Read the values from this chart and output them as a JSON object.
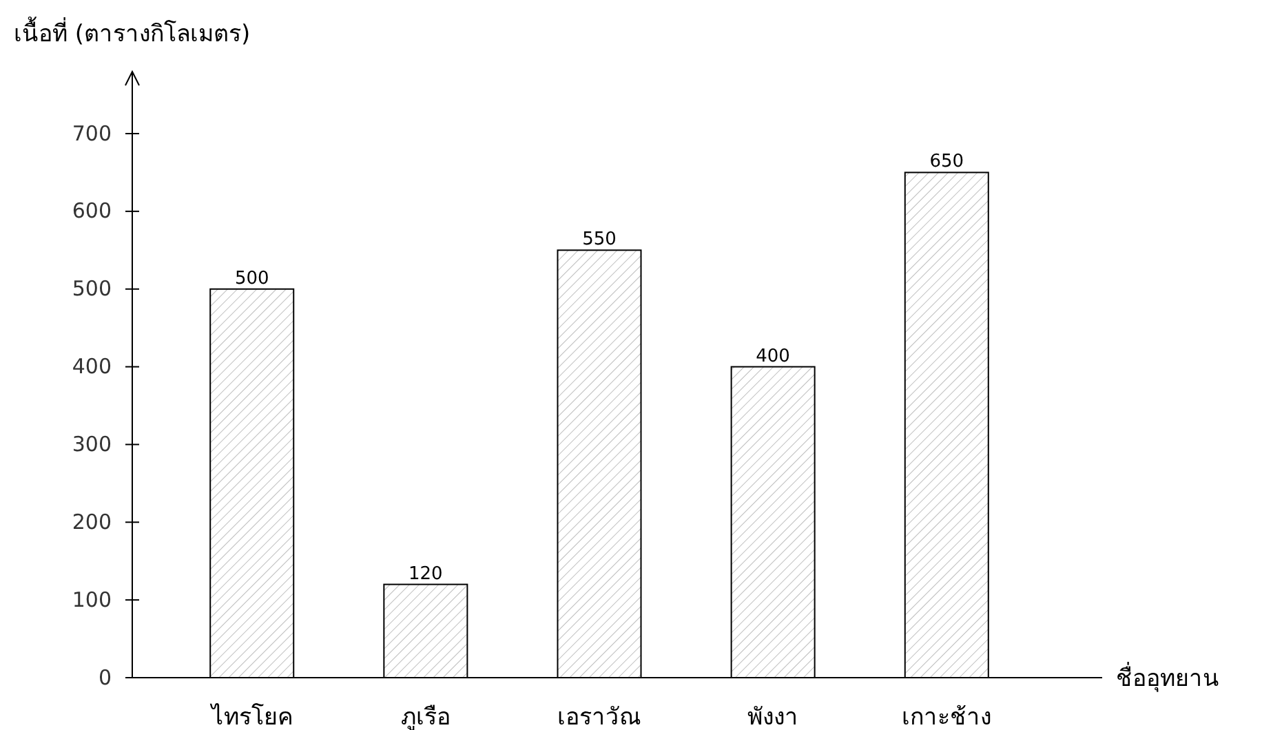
{
  "chart_data": {
    "type": "bar",
    "ylabel": "เนื้อที่ (ตารางกิโลเมตร)",
    "xlabel": "ชื่ออุทยาน",
    "categories": [
      "ไทรโยค",
      "ภูเรือ",
      "เอราวัณ",
      "พังงา",
      "เกาะช้าง"
    ],
    "values": [
      500,
      120,
      550,
      400,
      650
    ],
    "data_labels": true,
    "color": "#000000",
    "ylim": [
      0,
      700
    ],
    "yticks": [
      0,
      100,
      200,
      300,
      400,
      500,
      600,
      700
    ]
  }
}
